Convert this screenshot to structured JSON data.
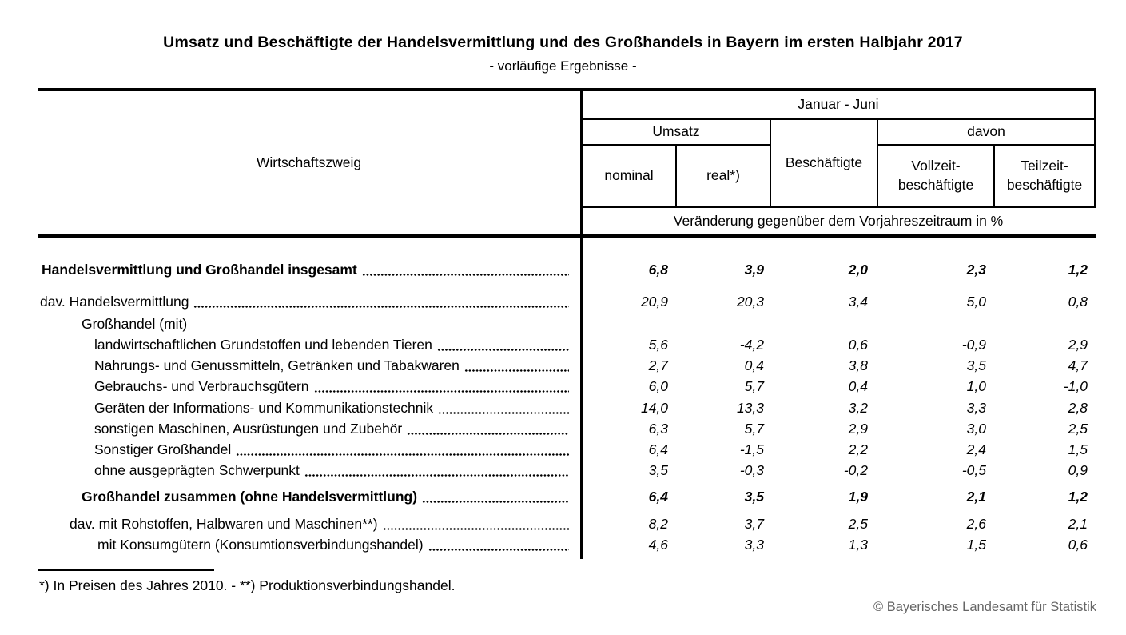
{
  "title": "Umsatz und Beschäftigte der Handelsvermittlung und des Großhandels in Bayern im ersten Halbjahr 2017",
  "subtitle": "- vorläufige Ergebnisse -",
  "table": {
    "header": {
      "wirtschaftszweig": "Wirtschaftszweig",
      "period": "Januar - Juni",
      "umsatz": "Umsatz",
      "nominal": "nominal",
      "real": "real*)",
      "beschaeftigte": "Beschäftigte",
      "davon": "davon",
      "vollzeit_line1": "Vollzeit-",
      "vollzeit_line2": "beschäftigte",
      "teilzeit_line1": "Teilzeit-",
      "teilzeit_line2": "beschäftigte",
      "unit_row": "Veränderung gegenüber dem Vorjahreszeitraum in %"
    },
    "columns": [
      "nominal",
      "real",
      "beschaeftigte",
      "vollzeitbeschaeftigte",
      "teilzeitbeschaeftigte"
    ],
    "rows": [
      {
        "label": "Handelsvermittlung und Großhandel insgesamt",
        "indent": 5,
        "bold": true,
        "leader": true,
        "values": [
          "6,8",
          "3,9",
          "2,0",
          "2,3",
          "1,2"
        ]
      },
      {
        "label": "dav. Handelsvermittlung",
        "indent": 3,
        "bold": false,
        "leader": true,
        "values": [
          "20,9",
          "20,3",
          "3,4",
          "5,0",
          "0,8"
        ]
      },
      {
        "label": "Großhandel (mit)",
        "indent": 55,
        "bold": false,
        "leader": false,
        "values": []
      },
      {
        "label": "landwirtschaftlichen Grundstoffen und lebenden Tieren",
        "indent": 71,
        "bold": false,
        "leader": true,
        "values": [
          "5,6",
          "-4,2",
          "0,6",
          "-0,9",
          "2,9"
        ]
      },
      {
        "label": "Nahrungs- und Genussmitteln, Getränken und Tabakwaren",
        "indent": 71,
        "bold": false,
        "leader": true,
        "values": [
          "2,7",
          "0,4",
          "3,8",
          "3,5",
          "4,7"
        ]
      },
      {
        "label": "Gebrauchs- und Verbrauchsgütern",
        "indent": 71,
        "bold": false,
        "leader": true,
        "values": [
          "6,0",
          "5,7",
          "0,4",
          "1,0",
          "-1,0"
        ]
      },
      {
        "label": "Geräten der Informations- und Kommunikationstechnik",
        "indent": 71,
        "bold": false,
        "leader": true,
        "values": [
          "14,0",
          "13,3",
          "3,2",
          "3,3",
          "2,8"
        ]
      },
      {
        "label": "sonstigen Maschinen, Ausrüstungen und Zubehör",
        "indent": 71,
        "bold": false,
        "leader": true,
        "values": [
          "6,3",
          "5,7",
          "2,9",
          "3,0",
          "2,5"
        ]
      },
      {
        "label": "Sonstiger Großhandel",
        "indent": 71,
        "bold": false,
        "leader": true,
        "values": [
          "6,4",
          "-1,5",
          "2,2",
          "2,4",
          "1,5"
        ]
      },
      {
        "label": "ohne ausgeprägten Schwerpunkt",
        "indent": 71,
        "bold": false,
        "leader": true,
        "values": [
          "3,5",
          "-0,3",
          "-0,2",
          "-0,5",
          "0,9"
        ]
      },
      {
        "label": "Großhandel zusammen (ohne Handelsvermittlung)",
        "indent": 55,
        "bold": true,
        "leader": true,
        "values": [
          "6,4",
          "3,5",
          "1,9",
          "2,1",
          "1,2"
        ]
      },
      {
        "label": "dav. mit Rohstoffen, Halbwaren und Maschinen**)",
        "indent": 40,
        "bold": false,
        "leader": true,
        "values": [
          "8,2",
          "3,7",
          "2,5",
          "2,6",
          "2,1"
        ]
      },
      {
        "label": "mit Konsumgütern (Konsumtionsverbindungshandel)",
        "indent": 75,
        "bold": false,
        "leader": true,
        "values": [
          "4,6",
          "3,3",
          "1,3",
          "1,5",
          "0,6"
        ]
      }
    ]
  },
  "footnote": "*) In Preisen des Jahres 2010. - **) Produktionsverbindungshandel.",
  "copyright": "© Bayerisches Landesamt für Statistik"
}
